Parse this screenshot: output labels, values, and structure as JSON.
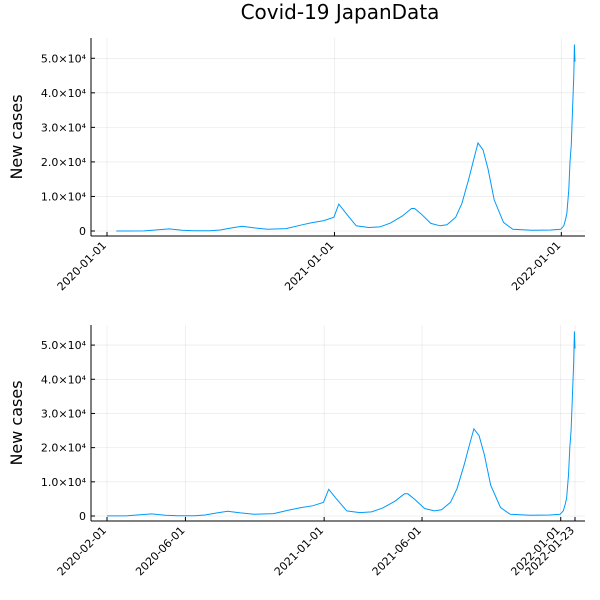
{
  "title": "Covid-19 JapanData",
  "colors": {
    "series": "#009af9",
    "axis": "#000000",
    "grid": "#e5e5e5"
  },
  "chart_data": [
    {
      "type": "line",
      "title": "Covid-19 JapanData",
      "xlabel": "",
      "ylabel": "New cases",
      "xlim": [
        "2020-01-01",
        "2022-01-23"
      ],
      "ylim": [
        0,
        55000
      ],
      "grid": true,
      "legend": "none",
      "x_ticks": [
        "2020-01-01",
        "2021-01-01",
        "2022-01-01"
      ],
      "y_ticks": [
        {
          "value": 0,
          "label": "0"
        },
        {
          "value": 10000,
          "label": "1.0×10⁴"
        },
        {
          "value": 20000,
          "label": "2.0×10⁴"
        },
        {
          "value": 30000,
          "label": "3.0×10⁴"
        },
        {
          "value": 40000,
          "label": "4.0×10⁴"
        },
        {
          "value": 50000,
          "label": "5.0×10⁴"
        }
      ],
      "series": [
        {
          "x": [
            "2020-01-16",
            "2020-03-01",
            "2020-04-10",
            "2020-05-01",
            "2020-05-20",
            "2020-06-15",
            "2020-07-01",
            "2020-07-20",
            "2020-08-05",
            "2020-08-25",
            "2020-09-15",
            "2020-10-15",
            "2020-11-10",
            "2020-11-25",
            "2020-12-15",
            "2020-12-31",
            "2021-01-08",
            "2021-01-20",
            "2021-02-05",
            "2021-02-25",
            "2021-03-15",
            "2021-04-01",
            "2021-04-20",
            "2021-05-05",
            "2021-05-10",
            "2021-05-20",
            "2021-06-05",
            "2021-06-20",
            "2021-07-01",
            "2021-07-15",
            "2021-07-25",
            "2021-08-05",
            "2021-08-12",
            "2021-08-20",
            "2021-08-28",
            "2021-09-05",
            "2021-09-15",
            "2021-09-30",
            "2021-10-15",
            "2021-11-15",
            "2021-12-15",
            "2021-12-31",
            "2022-01-05",
            "2022-01-08",
            "2022-01-10",
            "2022-01-13",
            "2022-01-15",
            "2022-01-17",
            "2022-01-19",
            "2022-01-21",
            "2022-01-22",
            "2022-01-23"
          ],
          "y": [
            0,
            30,
            600,
            200,
            50,
            60,
            300,
            900,
            1400,
            900,
            500,
            700,
            1800,
            2400,
            3000,
            4000,
            7800,
            5000,
            1500,
            1000,
            1200,
            2300,
            4300,
            6500,
            6500,
            5000,
            2200,
            1500,
            1800,
            4000,
            8000,
            15000,
            20000,
            25500,
            23500,
            18000,
            9000,
            2500,
            500,
            200,
            300,
            500,
            1500,
            3500,
            5200,
            12000,
            20000,
            25000,
            35000,
            45000,
            54000,
            49000
          ]
        }
      ]
    },
    {
      "type": "line",
      "title": "",
      "xlabel": "",
      "ylabel": "New cases",
      "xlim": [
        "2020-02-01",
        "2022-01-23"
      ],
      "ylim": [
        0,
        55000
      ],
      "grid": true,
      "legend": "none",
      "x_ticks": [
        "2020-02-01",
        "2020-06-01",
        "2021-01-01",
        "2021-06-01",
        "2022-01-01",
        "2022-01-23"
      ],
      "y_ticks": [
        {
          "value": 0,
          "label": "0"
        },
        {
          "value": 10000,
          "label": "1.0×10⁴"
        },
        {
          "value": 20000,
          "label": "2.0×10⁴"
        },
        {
          "value": 30000,
          "label": "3.0×10⁴"
        },
        {
          "value": 40000,
          "label": "4.0×10⁴"
        },
        {
          "value": 50000,
          "label": "5.0×10⁴"
        }
      ],
      "series": [
        {
          "x": [
            "2020-02-01",
            "2020-03-01",
            "2020-04-10",
            "2020-05-01",
            "2020-05-20",
            "2020-06-15",
            "2020-07-01",
            "2020-07-20",
            "2020-08-05",
            "2020-08-25",
            "2020-09-15",
            "2020-10-15",
            "2020-11-10",
            "2020-11-25",
            "2020-12-15",
            "2020-12-31",
            "2021-01-08",
            "2021-01-20",
            "2021-02-05",
            "2021-02-25",
            "2021-03-15",
            "2021-04-01",
            "2021-04-20",
            "2021-05-05",
            "2021-05-10",
            "2021-05-20",
            "2021-06-05",
            "2021-06-20",
            "2021-07-01",
            "2021-07-15",
            "2021-07-25",
            "2021-08-05",
            "2021-08-12",
            "2021-08-20",
            "2021-08-28",
            "2021-09-05",
            "2021-09-15",
            "2021-09-30",
            "2021-10-15",
            "2021-11-15",
            "2021-12-15",
            "2021-12-31",
            "2022-01-05",
            "2022-01-08",
            "2022-01-10",
            "2022-01-13",
            "2022-01-15",
            "2022-01-17",
            "2022-01-19",
            "2022-01-21",
            "2022-01-22",
            "2022-01-23"
          ],
          "y": [
            20,
            30,
            600,
            200,
            50,
            60,
            300,
            900,
            1400,
            900,
            500,
            700,
            1800,
            2400,
            3000,
            4000,
            7800,
            5000,
            1500,
            1000,
            1200,
            2300,
            4300,
            6500,
            6500,
            5000,
            2200,
            1500,
            1800,
            4000,
            8000,
            15000,
            20000,
            25500,
            23500,
            18000,
            9000,
            2500,
            500,
            200,
            300,
            500,
            1500,
            3500,
            5200,
            12000,
            20000,
            25000,
            35000,
            45000,
            54000,
            49000
          ]
        }
      ]
    }
  ]
}
